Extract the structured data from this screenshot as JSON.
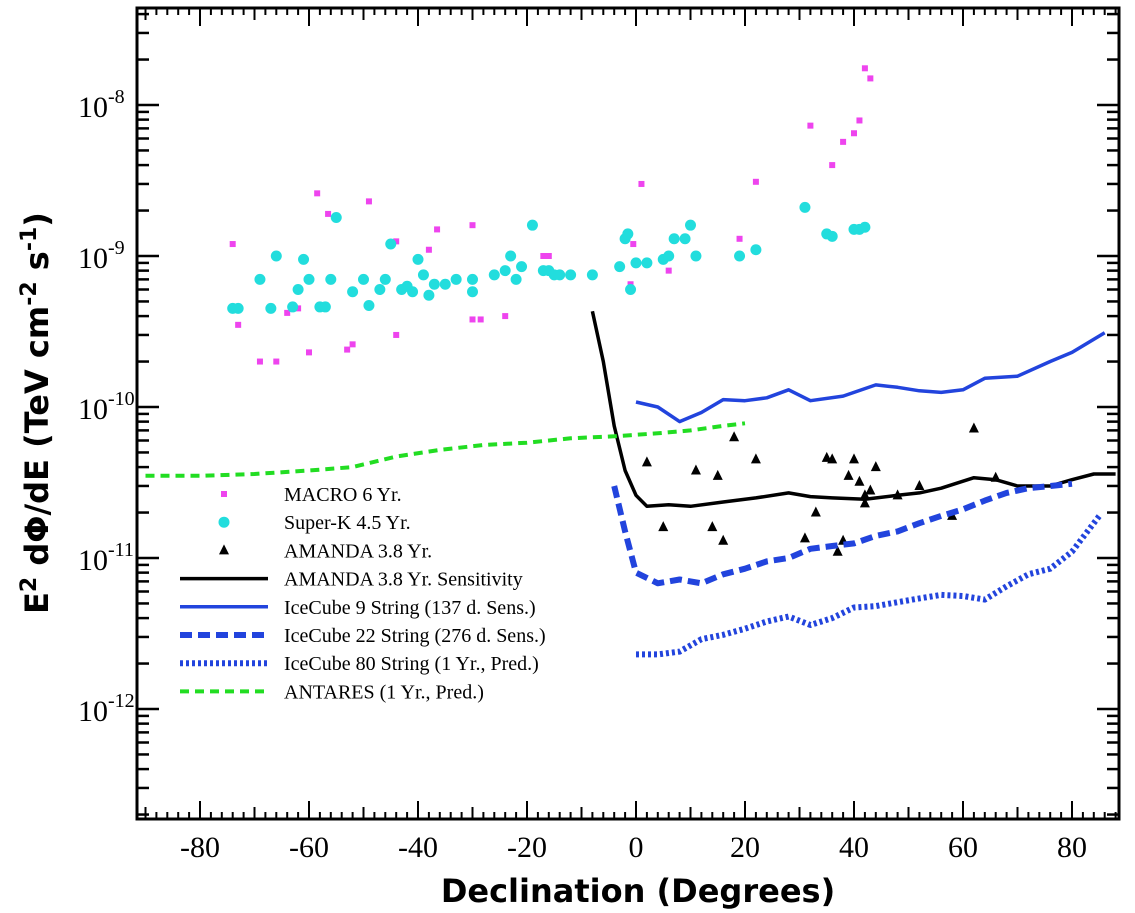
{
  "chart_data": {
    "type": "scatter",
    "xlabel": "Declination (Degrees)",
    "ylabel_parts": {
      "e": "E",
      "e_exp": "2",
      "mid": " dΦ/dE (TeV cm",
      "cm_exp": "-2",
      "s": " s",
      "s_exp": "-1",
      "end": ")"
    },
    "x_scale": "linear",
    "y_scale": "log",
    "xlim": [
      -90,
      88
    ],
    "ylim": [
      2e-13,
      5e-08
    ],
    "x_ticks": [
      -80,
      -60,
      -40,
      -20,
      0,
      20,
      40,
      60,
      80
    ],
    "y_ticks": [
      {
        "value": 1e-12,
        "base": "10",
        "exp": "-12"
      },
      {
        "value": 1e-11,
        "base": "10",
        "exp": "-11"
      },
      {
        "value": 1e-10,
        "base": "10",
        "exp": "-10"
      },
      {
        "value": 1e-09,
        "base": "10",
        "exp": "-9"
      },
      {
        "value": 1e-08,
        "base": "10",
        "exp": "-8"
      }
    ],
    "legend_placement": "lower-left",
    "series": [
      {
        "name": "MACRO 6 Yr.",
        "kind": "points",
        "marker": "square",
        "color": "#ee44ee",
        "points": [
          [
            -74,
            1.2e-09
          ],
          [
            -73,
            3.5e-10
          ],
          [
            -69,
            2e-10
          ],
          [
            -66,
            2e-10
          ],
          [
            -64,
            4.2e-10
          ],
          [
            -62,
            4.5e-10
          ],
          [
            -60,
            2.3e-10
          ],
          [
            -58.5,
            2.6e-09
          ],
          [
            -56.5,
            1.9e-09
          ],
          [
            -53,
            2.4e-10
          ],
          [
            -52,
            2.6e-10
          ],
          [
            -49,
            2.3e-09
          ],
          [
            -44,
            1.25e-09
          ],
          [
            -44,
            3e-10
          ],
          [
            -38,
            1.1e-09
          ],
          [
            -36.5,
            1.5e-09
          ],
          [
            -30,
            1.6e-09
          ],
          [
            -30,
            3.8e-10
          ],
          [
            -28.5,
            3.8e-10
          ],
          [
            -24,
            4e-10
          ],
          [
            -21,
            8.5e-10
          ],
          [
            -17,
            1e-09
          ],
          [
            -16,
            1e-09
          ],
          [
            -1,
            6.5e-10
          ],
          [
            -0.5,
            1.2e-09
          ],
          [
            1,
            3e-09
          ],
          [
            6,
            8e-10
          ],
          [
            10,
            1.6e-09
          ],
          [
            19,
            1.3e-09
          ],
          [
            22,
            3.1e-09
          ],
          [
            32,
            7.3e-09
          ],
          [
            36,
            4e-09
          ],
          [
            38,
            5.7e-09
          ],
          [
            40,
            6.5e-09
          ],
          [
            41,
            7.9e-09
          ],
          [
            42,
            1.75e-08
          ],
          [
            43,
            1.5e-08
          ]
        ]
      },
      {
        "name": "Super-K 4.5 Yr.",
        "kind": "points",
        "marker": "circle",
        "color": "#22dddd",
        "points": [
          [
            -74,
            4.5e-10
          ],
          [
            -73,
            4.5e-10
          ],
          [
            -69,
            7e-10
          ],
          [
            -67,
            4.5e-10
          ],
          [
            -66,
            1e-09
          ],
          [
            -63,
            4.6e-10
          ],
          [
            -62,
            6e-10
          ],
          [
            -61,
            9.5e-10
          ],
          [
            -60,
            7e-10
          ],
          [
            -58,
            4.6e-10
          ],
          [
            -57,
            4.6e-10
          ],
          [
            -56,
            7e-10
          ],
          [
            -55,
            1.8e-09
          ],
          [
            -52,
            5.8e-10
          ],
          [
            -50,
            7e-10
          ],
          [
            -49,
            4.7e-10
          ],
          [
            -47,
            6e-10
          ],
          [
            -46,
            7e-10
          ],
          [
            -45,
            1.2e-09
          ],
          [
            -43,
            6e-10
          ],
          [
            -42,
            6.3e-10
          ],
          [
            -41,
            5.8e-10
          ],
          [
            -40,
            9.5e-10
          ],
          [
            -39,
            7.5e-10
          ],
          [
            -38,
            5.5e-10
          ],
          [
            -37,
            6.5e-10
          ],
          [
            -35,
            6.5e-10
          ],
          [
            -33,
            7e-10
          ],
          [
            -30,
            7e-10
          ],
          [
            -30,
            5.8e-10
          ],
          [
            -26,
            7.5e-10
          ],
          [
            -24,
            8e-10
          ],
          [
            -23,
            1e-09
          ],
          [
            -22,
            7e-10
          ],
          [
            -21,
            8.5e-10
          ],
          [
            -19,
            1.6e-09
          ],
          [
            -17,
            8e-10
          ],
          [
            -16,
            8e-10
          ],
          [
            -15,
            7.5e-10
          ],
          [
            -14,
            7.5e-10
          ],
          [
            -12,
            7.5e-10
          ],
          [
            -8,
            7.5e-10
          ],
          [
            -3,
            8.5e-10
          ],
          [
            -2,
            1.3e-09
          ],
          [
            -1.5,
            1.4e-09
          ],
          [
            -1,
            6e-10
          ],
          [
            0,
            9e-10
          ],
          [
            2,
            9e-10
          ],
          [
            5,
            9.5e-10
          ],
          [
            6,
            1e-09
          ],
          [
            7,
            1.3e-09
          ],
          [
            9,
            1.3e-09
          ],
          [
            10,
            1.6e-09
          ],
          [
            11,
            1e-09
          ],
          [
            19,
            1e-09
          ],
          [
            22,
            1.1e-09
          ],
          [
            31,
            2.1e-09
          ],
          [
            35,
            1.4e-09
          ],
          [
            36,
            1.35e-09
          ],
          [
            40,
            1.5e-09
          ],
          [
            41,
            1.5e-09
          ],
          [
            42,
            1.55e-09
          ]
        ]
      },
      {
        "name": "AMANDA 3.8 Yr.",
        "kind": "points",
        "marker": "triangle",
        "color": "#000000",
        "points": [
          [
            2,
            4.3e-11
          ],
          [
            5,
            1.6e-11
          ],
          [
            11,
            3.8e-11
          ],
          [
            14,
            1.6e-11
          ],
          [
            15,
            3.5e-11
          ],
          [
            16,
            1.3e-11
          ],
          [
            18,
            6.3e-11
          ],
          [
            22,
            4.5e-11
          ],
          [
            31,
            1.35e-11
          ],
          [
            33,
            2e-11
          ],
          [
            35,
            4.6e-11
          ],
          [
            36,
            4.5e-11
          ],
          [
            37,
            1.1e-11
          ],
          [
            38,
            1.3e-11
          ],
          [
            39,
            3.5e-11
          ],
          [
            40,
            4.5e-11
          ],
          [
            41,
            3.2e-11
          ],
          [
            42,
            2.6e-11
          ],
          [
            42,
            2.3e-11
          ],
          [
            43,
            2.8e-11
          ],
          [
            44,
            4e-11
          ],
          [
            48,
            2.6e-11
          ],
          [
            52,
            3e-11
          ],
          [
            58,
            1.9e-11
          ],
          [
            62,
            7.2e-11
          ],
          [
            66,
            3.4e-11
          ]
        ]
      },
      {
        "name": "AMANDA 3.8 Yr. Sensitivity",
        "kind": "line",
        "style": "solid",
        "color": "#000000",
        "width": 3.5,
        "points": [
          [
            -8,
            4.3e-10
          ],
          [
            -6,
            2e-10
          ],
          [
            -4,
            7.5e-11
          ],
          [
            -2,
            3.8e-11
          ],
          [
            0,
            2.6e-11
          ],
          [
            2,
            2.2e-11
          ],
          [
            6,
            2.25e-11
          ],
          [
            10,
            2.2e-11
          ],
          [
            16,
            2.35e-11
          ],
          [
            22,
            2.5e-11
          ],
          [
            28,
            2.7e-11
          ],
          [
            32,
            2.55e-11
          ],
          [
            36,
            2.5e-11
          ],
          [
            42,
            2.45e-11
          ],
          [
            48,
            2.6e-11
          ],
          [
            52,
            2.7e-11
          ],
          [
            56,
            2.9e-11
          ],
          [
            62,
            3.4e-11
          ],
          [
            66,
            3.3e-11
          ],
          [
            70,
            3e-11
          ],
          [
            76,
            3e-11
          ],
          [
            80,
            3.3e-11
          ],
          [
            84,
            3.6e-11
          ],
          [
            88,
            3.6e-11
          ]
        ]
      },
      {
        "name": "IceCube 9 String (137 d. Sens.)",
        "kind": "line",
        "style": "solid",
        "color": "#2244dd",
        "width": 3.5,
        "points": [
          [
            0,
            1.08e-10
          ],
          [
            4,
            1e-10
          ],
          [
            8,
            8e-11
          ],
          [
            12,
            9.2e-11
          ],
          [
            16,
            1.12e-10
          ],
          [
            20,
            1.1e-10
          ],
          [
            24,
            1.15e-10
          ],
          [
            28,
            1.3e-10
          ],
          [
            32,
            1.1e-10
          ],
          [
            38,
            1.18e-10
          ],
          [
            44,
            1.4e-10
          ],
          [
            48,
            1.35e-10
          ],
          [
            52,
            1.28e-10
          ],
          [
            56,
            1.25e-10
          ],
          [
            60,
            1.3e-10
          ],
          [
            64,
            1.55e-10
          ],
          [
            70,
            1.6e-10
          ],
          [
            76,
            2e-10
          ],
          [
            80,
            2.3e-10
          ],
          [
            86,
            3.1e-10
          ]
        ]
      },
      {
        "name": "IceCube 22 String (276 d. Sens.)",
        "kind": "line",
        "style": "dashed",
        "color": "#2244dd",
        "width": 6,
        "points": [
          [
            -4,
            3e-11
          ],
          [
            -2,
            1.5e-11
          ],
          [
            0,
            8e-12
          ],
          [
            4,
            6.8e-12
          ],
          [
            8,
            7.2e-12
          ],
          [
            12,
            6.8e-12
          ],
          [
            16,
            7.8e-12
          ],
          [
            20,
            8.5e-12
          ],
          [
            24,
            9.5e-12
          ],
          [
            28,
            1e-11
          ],
          [
            32,
            1.15e-11
          ],
          [
            36,
            1.2e-11
          ],
          [
            40,
            1.25e-11
          ],
          [
            44,
            1.4e-11
          ],
          [
            48,
            1.5e-11
          ],
          [
            52,
            1.7e-11
          ],
          [
            56,
            1.9e-11
          ],
          [
            60,
            2.1e-11
          ],
          [
            64,
            2.4e-11
          ],
          [
            68,
            2.7e-11
          ],
          [
            72,
            2.9e-11
          ],
          [
            76,
            3e-11
          ],
          [
            80,
            3.1e-11
          ]
        ]
      },
      {
        "name": "IceCube 80 String (1 Yr., Pred.)",
        "kind": "line",
        "style": "dotted",
        "color": "#2244dd",
        "width": 6,
        "points": [
          [
            0,
            2.3e-12
          ],
          [
            4,
            2.3e-12
          ],
          [
            8,
            2.4e-12
          ],
          [
            12,
            2.9e-12
          ],
          [
            16,
            3.1e-12
          ],
          [
            20,
            3.4e-12
          ],
          [
            24,
            3.8e-12
          ],
          [
            28,
            4.1e-12
          ],
          [
            32,
            3.6e-12
          ],
          [
            36,
            4e-12
          ],
          [
            40,
            4.7e-12
          ],
          [
            44,
            4.8e-12
          ],
          [
            48,
            5.1e-12
          ],
          [
            52,
            5.4e-12
          ],
          [
            56,
            5.7e-12
          ],
          [
            60,
            5.6e-12
          ],
          [
            64,
            5.3e-12
          ],
          [
            68,
            6.5e-12
          ],
          [
            72,
            7.8e-12
          ],
          [
            76,
            8.5e-12
          ],
          [
            80,
            1.1e-11
          ],
          [
            85,
            1.9e-11
          ]
        ]
      },
      {
        "name": "ANTARES (1 Yr., Pred.)",
        "kind": "line",
        "style": "dashed",
        "color": "#22dd22",
        "width": 4,
        "points": [
          [
            -90,
            3.5e-11
          ],
          [
            -80,
            3.5e-11
          ],
          [
            -70,
            3.6e-11
          ],
          [
            -60,
            3.8e-11
          ],
          [
            -52,
            4e-11
          ],
          [
            -44,
            4.7e-11
          ],
          [
            -36,
            5.2e-11
          ],
          [
            -28,
            5.6e-11
          ],
          [
            -20,
            5.8e-11
          ],
          [
            -12,
            6.2e-11
          ],
          [
            -4,
            6.4e-11
          ],
          [
            4,
            6.7e-11
          ],
          [
            10,
            7e-11
          ],
          [
            16,
            7.5e-11
          ],
          [
            20,
            7.8e-11
          ]
        ]
      }
    ]
  }
}
